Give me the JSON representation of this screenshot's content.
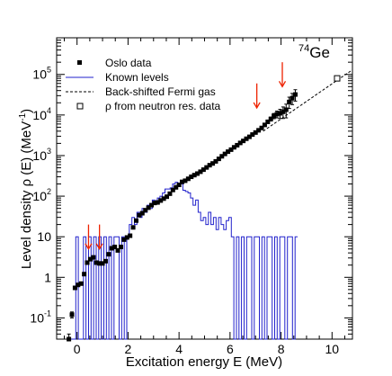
{
  "chart_data": {
    "type": "scatter",
    "isotope": {
      "mass": "74",
      "symbol": "Ge"
    },
    "xlabel": "Excitation energy E (MeV)",
    "ylabel": "Level density ρ (E) (MeV",
    "ylabel_sup": "-1",
    "ylabel_end": ")",
    "xlim": [
      -0.8,
      10.8
    ],
    "ylim": [
      0.03,
      800000
    ],
    "yscale": "log",
    "x_ticks": [
      0,
      2,
      4,
      6,
      8,
      10
    ],
    "x_tick_labels": [
      "0",
      "2",
      "4",
      "6",
      "8",
      "10"
    ],
    "y_ticks": [
      0.1,
      1,
      10,
      100,
      1000,
      10000,
      100000
    ],
    "y_tick_labels": [
      {
        "base": "10",
        "exp": "-1"
      },
      {
        "base": "1",
        "exp": ""
      },
      {
        "base": "10",
        "exp": ""
      },
      {
        "base": "10",
        "exp": "2"
      },
      {
        "base": "10",
        "exp": "3"
      },
      {
        "base": "10",
        "exp": "4"
      },
      {
        "base": "10",
        "exp": "5"
      }
    ],
    "legend": {
      "placement": "top-left",
      "entries": [
        "Oslo data",
        "Known levels",
        "Back-shifted Fermi gas",
        "ρ from neutron res. data"
      ]
    },
    "colors": {
      "oslo": "#000000",
      "known": "#2222cc",
      "fermi": "#000000",
      "arrow": "#ee2200"
    },
    "series": [
      {
        "name": "Oslo data",
        "x": [
          -0.32,
          -0.2,
          -0.08,
          0.04,
          0.16,
          0.28,
          0.4,
          0.52,
          0.64,
          0.76,
          0.88,
          1.0,
          1.12,
          1.24,
          1.36,
          1.48,
          1.6,
          1.72,
          1.84,
          1.96,
          2.08,
          2.2,
          2.32,
          2.44,
          2.56,
          2.68,
          2.8,
          2.92,
          3.04,
          3.16,
          3.28,
          3.4,
          3.52,
          3.64,
          3.76,
          3.88,
          4.0,
          4.12,
          4.24,
          4.36,
          4.48,
          4.6,
          4.72,
          4.84,
          4.96,
          5.08,
          5.2,
          5.32,
          5.44,
          5.56,
          5.68,
          5.8,
          5.92,
          6.04,
          6.16,
          6.28,
          6.4,
          6.52,
          6.64,
          6.76,
          6.88,
          7.0,
          7.12,
          7.24,
          7.36,
          7.48,
          7.6,
          7.72,
          7.84,
          7.96,
          8.08,
          8.2,
          8.32,
          8.44,
          8.56
        ],
        "y": [
          0.03,
          0.12,
          0.55,
          0.65,
          0.7,
          1.2,
          2.3,
          2.8,
          3.1,
          2.3,
          2.2,
          2.2,
          2.5,
          3.7,
          5.2,
          5.6,
          4.6,
          5.6,
          8.5,
          9.6,
          10.6,
          17,
          25,
          34,
          38,
          45,
          52,
          60,
          68,
          70,
          78,
          87,
          97,
          115,
          142,
          165,
          190,
          225,
          240,
          268,
          300,
          330,
          360,
          400,
          450,
          510,
          580,
          640,
          720,
          830,
          960,
          1100,
          1250,
          1400,
          1600,
          1800,
          2050,
          2300,
          2600,
          2900,
          3300,
          3700,
          4200,
          4800,
          5700,
          6800,
          8000,
          9500,
          10500,
          11000,
          12000,
          13500,
          21000,
          26000,
          32000
        ],
        "yerr": [
          0.01,
          0.02,
          0.05,
          0.05,
          0.05,
          0.08,
          0.15,
          0.15,
          0.15,
          0.12,
          0.1,
          0.1,
          0.12,
          0.2,
          0.3,
          0.3,
          0.25,
          0.3,
          0.4,
          0.5,
          0.5,
          0.8,
          1.2,
          1.6,
          1.8,
          2,
          2.2,
          2.5,
          3,
          3,
          3.3,
          3.6,
          4,
          5,
          6,
          7,
          8,
          9,
          10,
          11,
          12,
          13,
          14,
          16,
          18,
          20,
          23,
          25,
          28,
          32,
          38,
          45,
          50,
          60,
          70,
          80,
          95,
          110,
          130,
          150,
          180,
          210,
          250,
          300,
          400,
          600,
          900,
          1400,
          2000,
          2800,
          3800,
          5000,
          6500,
          8000,
          10000
        ]
      },
      {
        "name": "Known levels",
        "step_x": [
          -0.35,
          -0.2,
          -0.05,
          0.05,
          0.15,
          0.25,
          0.35,
          0.45,
          0.55,
          0.65,
          0.75,
          0.85,
          0.95,
          1.05,
          1.15,
          1.25,
          1.35,
          1.45,
          1.55,
          1.65,
          1.75,
          1.85,
          1.95,
          2.05,
          2.15,
          2.25,
          2.35,
          2.45,
          2.55,
          2.65,
          2.75,
          2.85,
          2.95,
          3.05,
          3.15,
          3.25,
          3.35,
          3.45,
          3.55,
          3.65,
          3.75,
          3.85,
          3.95,
          4.05,
          4.15,
          4.25,
          4.35,
          4.45,
          4.55,
          4.65,
          4.75,
          4.85,
          4.95,
          5.05,
          5.15,
          5.25,
          5.35,
          5.45,
          5.55,
          5.65,
          5.75,
          5.85,
          5.95,
          6.05,
          6.15,
          6.25,
          6.35,
          6.45,
          6.55,
          6.65,
          6.75,
          6.85,
          6.95,
          7.05,
          7.15,
          7.25,
          7.35,
          7.45,
          7.55,
          7.65,
          7.75,
          7.85,
          7.95,
          8.05,
          8.15,
          8.25,
          8.35,
          8.45,
          8.55,
          8.65
        ],
        "step_y": [
          0.01,
          0.01,
          10,
          0.01,
          0.01,
          10,
          0.01,
          10,
          0.01,
          10,
          0.01,
          10,
          0.01,
          10,
          0.01,
          10,
          0.01,
          10,
          10,
          0.01,
          10,
          0.01,
          10,
          20,
          30,
          20,
          40,
          30,
          50,
          40,
          60,
          50,
          80,
          70,
          90,
          100,
          120,
          150,
          150,
          160,
          200,
          220,
          180,
          200,
          140,
          130,
          120,
          90,
          60,
          80,
          40,
          25,
          30,
          20,
          40,
          20,
          30,
          15,
          30,
          20,
          15,
          25,
          30,
          10,
          0.01,
          10,
          0.01,
          10,
          0.01,
          10,
          10,
          0.01,
          10,
          10,
          0.01,
          10,
          0.01,
          10,
          10,
          0.01,
          10,
          0.01,
          10,
          10,
          0.01,
          10,
          10,
          0.01,
          10,
          0.01
        ]
      },
      {
        "name": "Back-shifted Fermi gas",
        "x": [
          7.3,
          10.8
        ],
        "y": [
          4000,
          130000
        ]
      },
      {
        "name": "ρ from neutron res. data",
        "x": [
          10.2
        ],
        "y": [
          80000
        ]
      }
    ],
    "annotations": [
      {
        "type": "arrow",
        "x": 0.45,
        "y_top": 20,
        "y_tip": 5
      },
      {
        "type": "arrow",
        "x": 0.88,
        "y_top": 20,
        "y_tip": 5
      },
      {
        "type": "arrow",
        "x": 7.05,
        "y_top": 60000,
        "y_tip": 15000
      },
      {
        "type": "arrow",
        "x": 8.05,
        "y_top": 200000,
        "y_tip": 50000
      }
    ]
  }
}
